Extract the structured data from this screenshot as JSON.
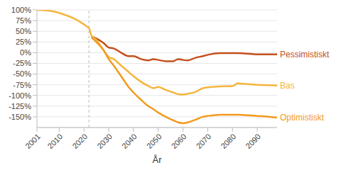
{
  "chart_data": {
    "type": "line",
    "x_label": "År",
    "x": [
      2001,
      2004,
      2007,
      2010,
      2013,
      2016,
      2019,
      2021,
      2022,
      2023,
      2025,
      2028,
      2030,
      2032,
      2035,
      2038,
      2040,
      2043,
      2046,
      2048,
      2050,
      2053,
      2056,
      2058,
      2060,
      2062,
      2065,
      2068,
      2070,
      2075,
      2080,
      2082,
      2085,
      2090,
      2095,
      2098
    ],
    "series": [
      {
        "name": "Pessimistiskt",
        "color": "#c4501c",
        "values": [
          null,
          null,
          null,
          null,
          null,
          null,
          null,
          null,
          null,
          38,
          33,
          22,
          12,
          10,
          0,
          -8,
          -8,
          -15,
          -18,
          -15,
          -17,
          -20,
          -20,
          -15,
          -17,
          -18,
          -12,
          -8,
          -5,
          -1,
          -1,
          -1,
          -2,
          -4,
          -4,
          -4
        ]
      },
      {
        "name": "Bas",
        "color": "#f5b53c",
        "values": [
          100,
          99,
          97,
          93,
          87,
          80,
          70,
          62,
          58,
          40,
          30,
          5,
          -10,
          -15,
          -30,
          -45,
          -55,
          -68,
          -78,
          -83,
          -80,
          -87,
          -93,
          -97,
          -98,
          -96,
          -92,
          -83,
          -81,
          -79,
          -78,
          -72,
          -73,
          -75,
          -76,
          -77
        ]
      },
      {
        "name": "Optimistiskt",
        "color": "#f39a1e",
        "values": [
          null,
          null,
          null,
          null,
          null,
          null,
          null,
          null,
          null,
          36,
          25,
          5,
          -15,
          -30,
          -55,
          -80,
          -93,
          -110,
          -125,
          -132,
          -140,
          -150,
          -158,
          -163,
          -165,
          -163,
          -157,
          -150,
          -148,
          -145,
          -145,
          -145,
          -146,
          -148,
          -150,
          -152
        ]
      }
    ],
    "xlim": [
      2001,
      2098
    ],
    "xticks": [
      2001,
      2010,
      2020,
      2030,
      2040,
      2050,
      2060,
      2070,
      2080,
      2090
    ],
    "ylim": [
      -175,
      100
    ],
    "yticks": [
      {
        "value": 100,
        "label": "100%"
      },
      {
        "value": 75,
        "label": "75%"
      },
      {
        "value": 50,
        "label": "50%"
      },
      {
        "value": 25,
        "label": "25%"
      },
      {
        "value": 0,
        "label": "0%"
      },
      {
        "value": -25,
        "label": "-25%"
      },
      {
        "value": -50,
        "label": "-50%"
      },
      {
        "value": -75,
        "label": "-75%"
      },
      {
        "value": -100,
        "label": "-100%"
      },
      {
        "value": -125,
        "label": "-125%"
      },
      {
        "value": -150,
        "label": "-150%"
      }
    ],
    "vline": 2022,
    "grid": true
  }
}
